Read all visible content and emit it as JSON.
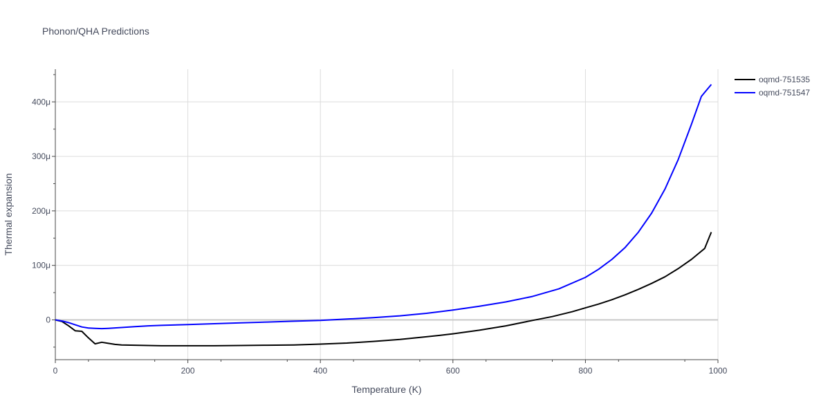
{
  "chart_data": {
    "type": "line",
    "title": "Phonon/QHA Predictions",
    "xlabel": "Temperature (K)",
    "ylabel": "Thermal expansion",
    "xlim": [
      0,
      1000
    ],
    "ylim": [
      -73,
      460
    ],
    "x_ticks": [
      0,
      200,
      400,
      600,
      800,
      1000
    ],
    "y_ticks": [
      0,
      100,
      200,
      300,
      400
    ],
    "y_tick_labels": [
      "0",
      "100μ",
      "200μ",
      "300μ",
      "400μ"
    ],
    "grid": true,
    "legend_position": "top-right",
    "series": [
      {
        "name": "oqmd-751535",
        "color": "#000000",
        "x": [
          0,
          10,
          20,
          30,
          40,
          50,
          60,
          70,
          80,
          90,
          100,
          120,
          140,
          160,
          200,
          240,
          280,
          320,
          360,
          400,
          440,
          480,
          520,
          560,
          580,
          600,
          640,
          680,
          720,
          750,
          780,
          800,
          820,
          840,
          860,
          880,
          900,
          920,
          940,
          960,
          980,
          990
        ],
        "y": [
          0,
          -3,
          -11,
          -20,
          -21,
          -33,
          -44,
          -41,
          -43,
          -45,
          -46,
          -46.5,
          -47,
          -47.5,
          -47.5,
          -47.5,
          -47,
          -46.5,
          -46,
          -44.5,
          -42.5,
          -39.5,
          -36,
          -31,
          -28.5,
          -25.5,
          -19,
          -11,
          -1,
          6,
          15,
          22,
          29,
          37,
          46,
          56,
          67,
          79,
          94,
          111,
          131,
          161
        ]
      },
      {
        "name": "oqmd-751547",
        "color": "#0000ff",
        "x": [
          0,
          10,
          20,
          30,
          40,
          50,
          60,
          70,
          80,
          100,
          120,
          140,
          160,
          200,
          240,
          280,
          320,
          360,
          400,
          440,
          480,
          520,
          560,
          600,
          640,
          680,
          720,
          760,
          800,
          820,
          840,
          860,
          880,
          900,
          920,
          940,
          960,
          975,
          990
        ],
        "y": [
          0,
          -2,
          -5,
          -9,
          -13,
          -15,
          -15.5,
          -16,
          -15.5,
          -14,
          -12.5,
          -11,
          -10,
          -8.5,
          -7,
          -5.5,
          -4,
          -2.5,
          -1,
          1.5,
          4,
          7.5,
          12,
          18,
          25,
          33,
          43,
          57,
          78,
          93,
          111,
          133,
          161,
          196,
          240,
          294,
          359,
          410,
          432
        ]
      }
    ]
  }
}
